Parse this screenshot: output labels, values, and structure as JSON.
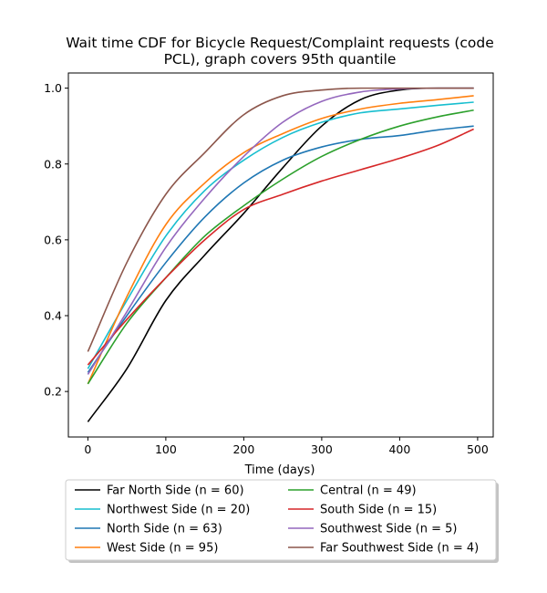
{
  "chart_data": {
    "type": "line",
    "title_lines": [
      "Wait time CDF for Bicycle Request/Complaint  requests (code",
      "PCL), graph covers 95th quantile"
    ],
    "xlabel": "Time (days)",
    "ylabel": "",
    "xlim": [
      -25,
      520
    ],
    "ylim": [
      0.08,
      1.04
    ],
    "x_ticks": [
      0,
      100,
      200,
      300,
      400,
      500
    ],
    "y_ticks": [
      0.2,
      0.4,
      0.6,
      0.8,
      1.0
    ],
    "x_tick_labels": [
      "0",
      "100",
      "200",
      "300",
      "400",
      "500"
    ],
    "y_tick_labels": [
      "0.2",
      "0.4",
      "0.6",
      "0.8",
      "1.0"
    ],
    "grid": false,
    "legend_position": "below-plot",
    "legend_columns": 2,
    "series": [
      {
        "name": "Far North Side (n = 60)",
        "color": "#000000",
        "x": [
          0,
          50,
          100,
          150,
          200,
          250,
          300,
          350,
          400,
          450,
          495
        ],
        "y": [
          0.12,
          0.26,
          0.44,
          0.56,
          0.67,
          0.79,
          0.9,
          0.97,
          0.995,
          1.0,
          1.0
        ]
      },
      {
        "name": "Northwest Side (n = 20)",
        "color": "#17becf",
        "x": [
          0,
          50,
          100,
          150,
          200,
          250,
          300,
          350,
          400,
          450,
          495
        ],
        "y": [
          0.26,
          0.44,
          0.61,
          0.73,
          0.81,
          0.87,
          0.91,
          0.935,
          0.945,
          0.955,
          0.963
        ]
      },
      {
        "name": "North Side (n = 63)",
        "color": "#1f77b4",
        "x": [
          0,
          50,
          100,
          150,
          200,
          250,
          300,
          350,
          400,
          450,
          495
        ],
        "y": [
          0.25,
          0.4,
          0.54,
          0.66,
          0.75,
          0.81,
          0.845,
          0.865,
          0.875,
          0.89,
          0.9
        ]
      },
      {
        "name": "West Side (n = 95)",
        "color": "#ff7f0e",
        "x": [
          0,
          50,
          100,
          150,
          200,
          250,
          300,
          350,
          400,
          450,
          495
        ],
        "y": [
          0.22,
          0.45,
          0.64,
          0.75,
          0.83,
          0.88,
          0.92,
          0.945,
          0.96,
          0.97,
          0.98
        ]
      },
      {
        "name": "Central (n = 49)",
        "color": "#2ca02c",
        "x": [
          0,
          50,
          100,
          150,
          200,
          250,
          300,
          350,
          400,
          450,
          495
        ],
        "y": [
          0.22,
          0.38,
          0.5,
          0.61,
          0.69,
          0.76,
          0.82,
          0.865,
          0.9,
          0.925,
          0.942
        ]
      },
      {
        "name": "South Side (n = 15)",
        "color": "#d62728",
        "x": [
          0,
          50,
          100,
          150,
          200,
          250,
          300,
          350,
          400,
          450,
          495
        ],
        "y": [
          0.27,
          0.39,
          0.5,
          0.6,
          0.68,
          0.72,
          0.755,
          0.785,
          0.815,
          0.85,
          0.892
        ]
      },
      {
        "name": "Southwest Side (n = 5)",
        "color": "#9467bd",
        "x": [
          0,
          50,
          100,
          150,
          200,
          250,
          300,
          350,
          400,
          450,
          495
        ],
        "y": [
          0.245,
          0.41,
          0.58,
          0.71,
          0.82,
          0.91,
          0.965,
          0.99,
          0.998,
          1.0,
          1.0
        ]
      },
      {
        "name": "Far Southwest Side (n = 4)",
        "color": "#8c564b",
        "x": [
          0,
          50,
          100,
          150,
          200,
          250,
          300,
          350,
          400,
          450,
          495
        ],
        "y": [
          0.305,
          0.54,
          0.72,
          0.83,
          0.93,
          0.98,
          0.995,
          1.0,
          1.0,
          1.0,
          1.0
        ]
      }
    ]
  }
}
